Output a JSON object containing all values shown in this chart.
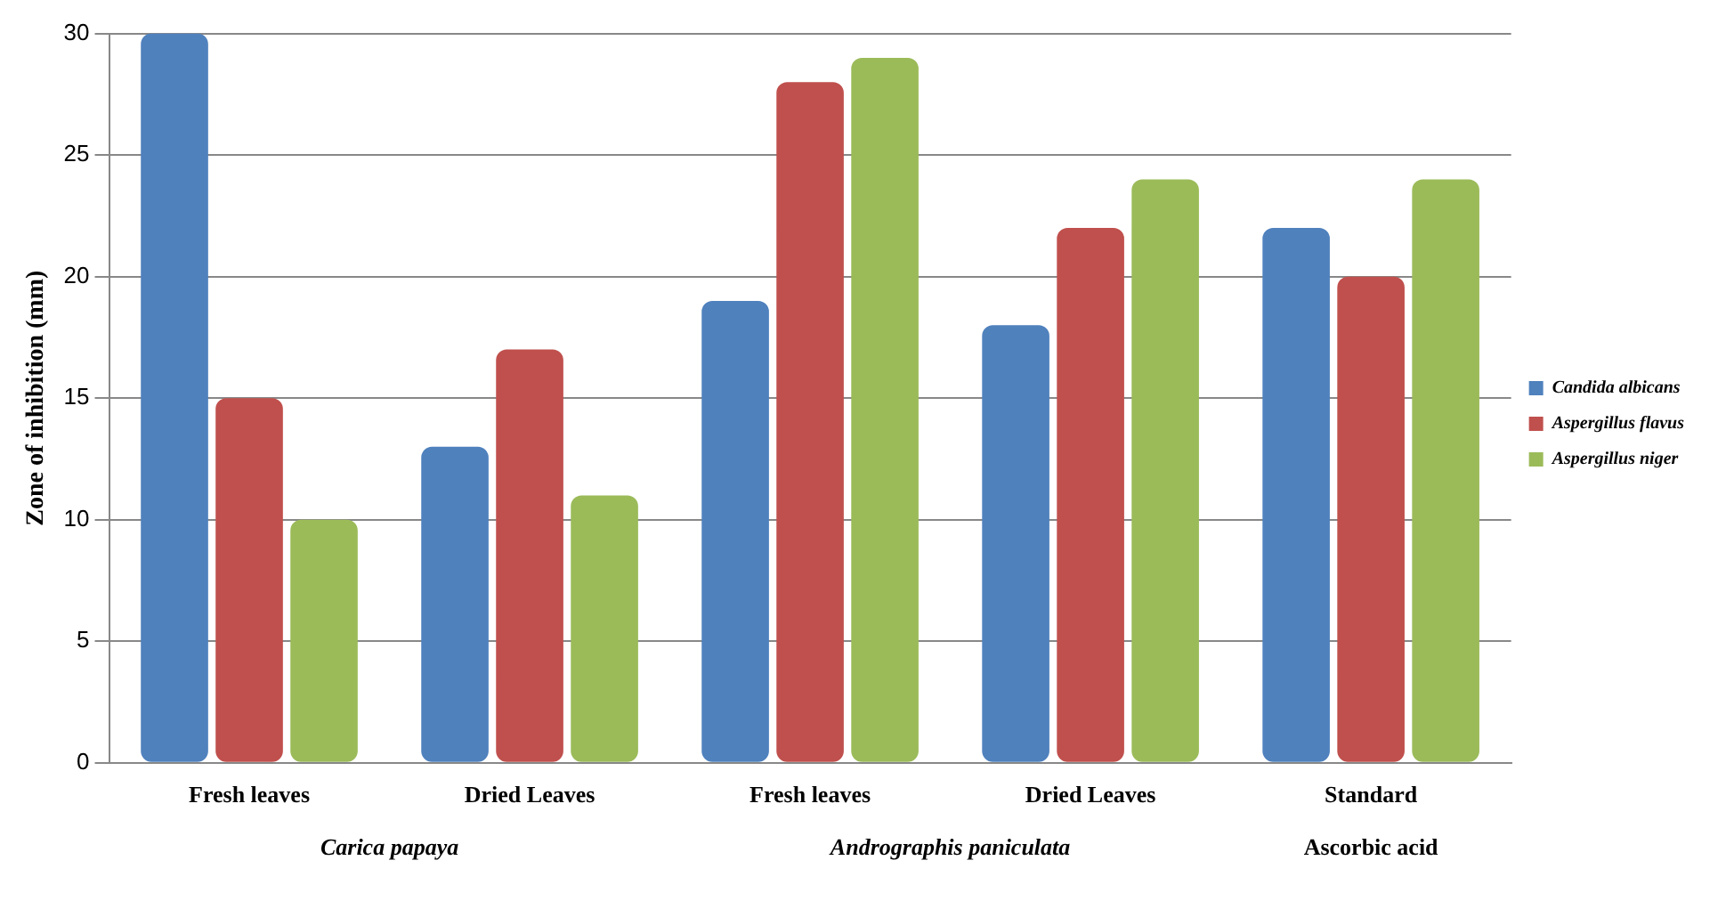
{
  "chart_data": {
    "type": "bar",
    "ylabel": "Zone of inhibition (mm)",
    "categories": [
      "Fresh leaves",
      "Dried Leaves",
      "Fresh leaves",
      "Dried Leaves",
      "Standard"
    ],
    "series": [
      {
        "name": "Candida albicans",
        "color": "#4f81bd",
        "values": [
          30,
          13,
          19,
          18,
          22
        ]
      },
      {
        "name": "Aspergillus flavus",
        "color": "#c0504d",
        "values": [
          15,
          17,
          28,
          22,
          20
        ]
      },
      {
        "name": "Aspergillus niger",
        "color": "#9bbb59",
        "values": [
          10,
          11,
          29,
          24,
          24
        ]
      }
    ],
    "ylim": [
      0,
      30
    ],
    "yticks": [
      0,
      5,
      10,
      15,
      20,
      25,
      30
    ],
    "grid": "y",
    "legend": "right",
    "annotations": [
      "Carica papaya",
      "Andrographis paniculata",
      "Ascorbic acid"
    ]
  }
}
